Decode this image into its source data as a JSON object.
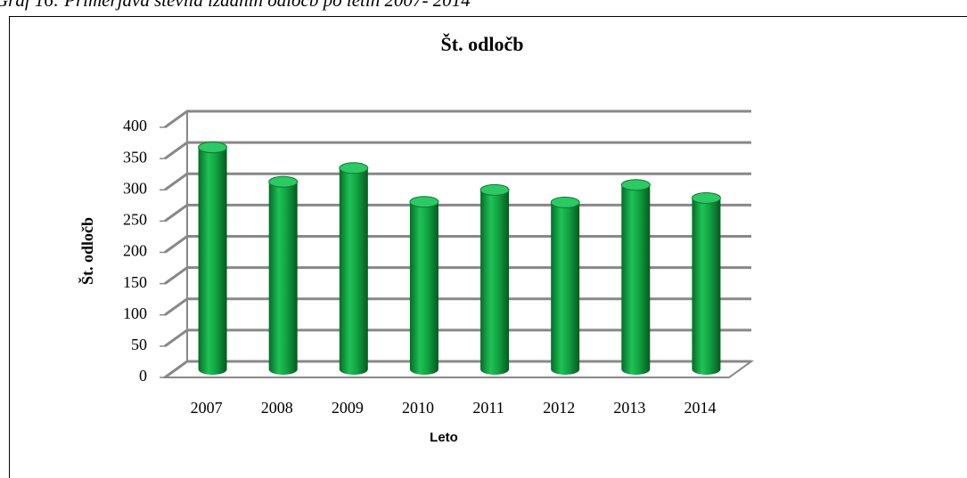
{
  "caption": "Graf 16: Primerjava števila izdanih odločb po letih 2007- 2014",
  "chart_data": {
    "type": "bar",
    "title": "Št. odločb",
    "x_label": "Leto",
    "y_label": "Št. odločb",
    "categories": [
      "2007",
      "2008",
      "2009",
      "2010",
      "2011",
      "2012",
      "2013",
      "2014"
    ],
    "values": [
      355,
      300,
      322,
      268,
      287,
      267,
      295,
      274
    ],
    "color": "#0c9a3c",
    "ylim": [
      0,
      400
    ],
    "yticks": [
      0,
      50,
      100,
      150,
      200,
      250,
      300,
      350,
      400
    ],
    "grid": true
  }
}
